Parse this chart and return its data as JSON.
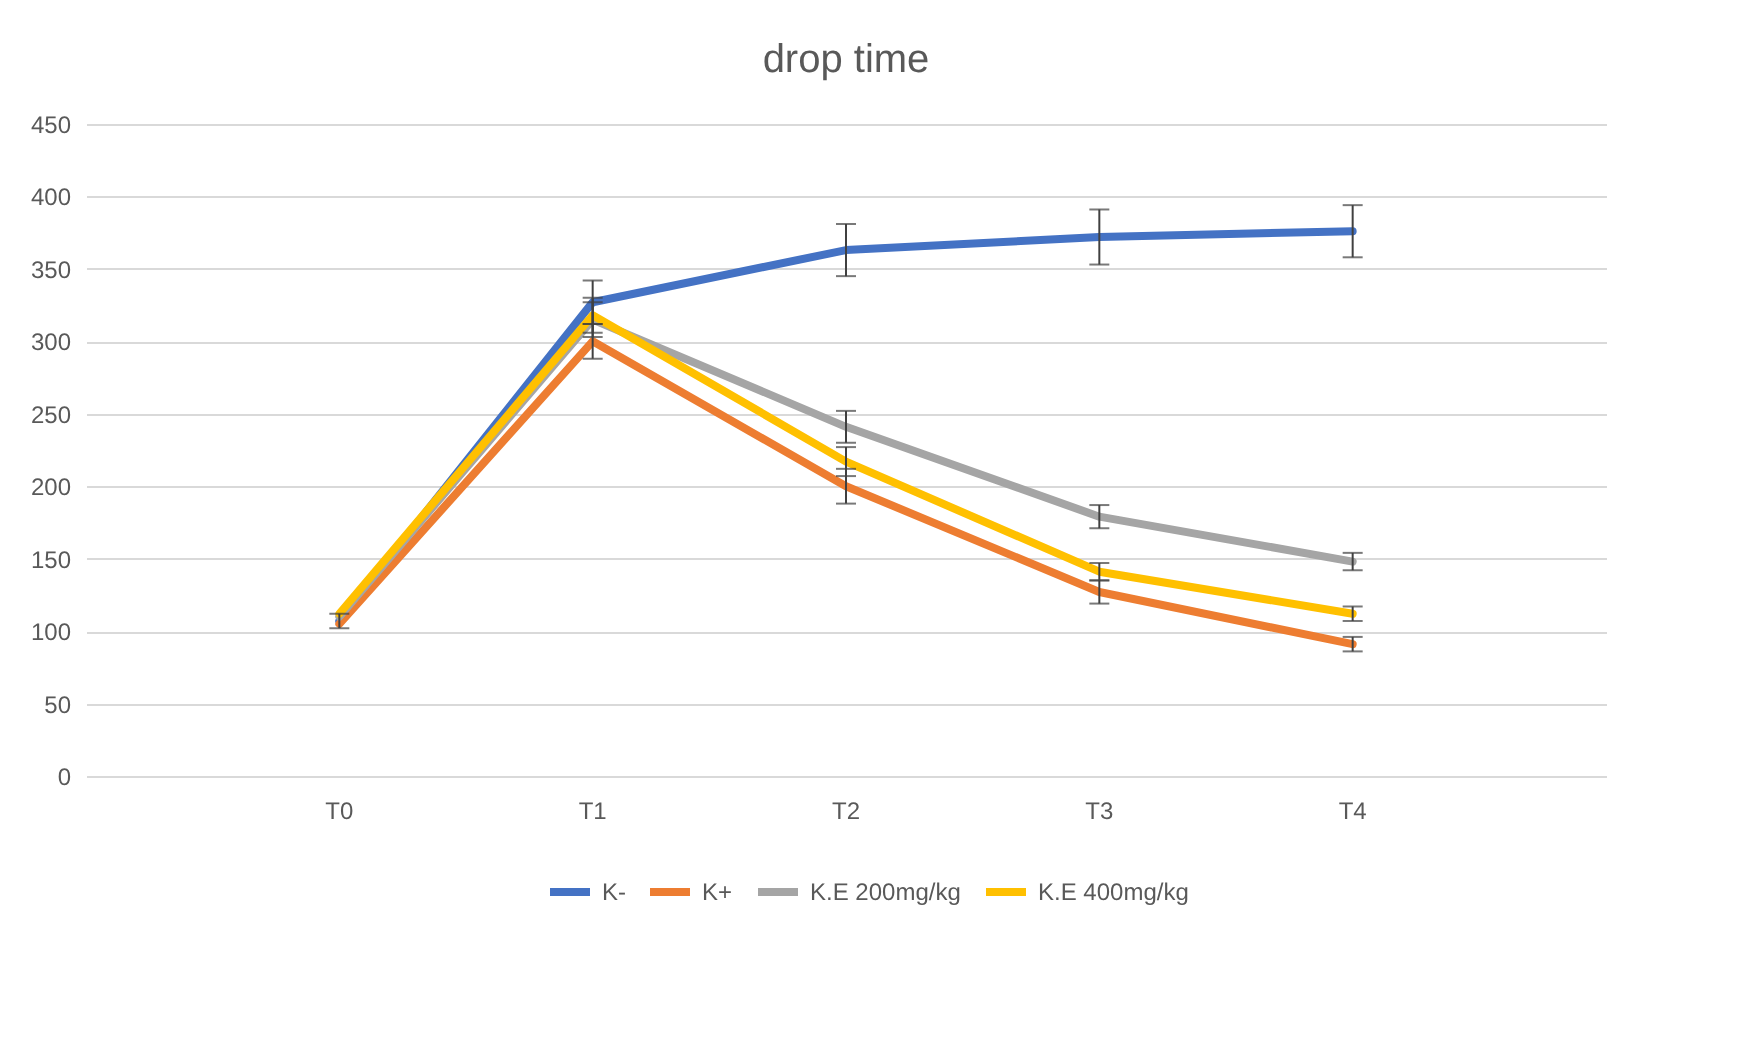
{
  "chart_data": {
    "type": "line",
    "title": "drop time",
    "categories": [
      "T0",
      "T1",
      "T2",
      "T3",
      "T4"
    ],
    "series": [
      {
        "name": "K-",
        "color": "#4472c4",
        "values": [
          107,
          327,
          363,
          372,
          376
        ],
        "errors": [
          5,
          15,
          18,
          19,
          18
        ]
      },
      {
        "name": "K+",
        "color": "#ed7d31",
        "values": [
          105,
          300,
          200,
          127,
          91
        ],
        "errors": [
          null,
          12,
          12,
          8,
          5
        ]
      },
      {
        "name": "K.E 200mg/kg",
        "color": "#a5a5a5",
        "values": [
          110,
          315,
          241,
          179,
          148
        ],
        "errors": [
          null,
          12,
          11,
          8,
          6
        ]
      },
      {
        "name": "K.E 400mg/kg",
        "color": "#ffc000",
        "values": [
          112,
          318,
          217,
          141,
          112
        ],
        "errors": [
          null,
          12,
          10,
          6,
          5
        ]
      }
    ],
    "ylim": [
      0,
      450
    ],
    "yticks": [
      0,
      50,
      100,
      150,
      200,
      250,
      300,
      350,
      400,
      450
    ],
    "grid": "y",
    "legend": "bottom",
    "marker": "none",
    "line_style": "solid"
  }
}
